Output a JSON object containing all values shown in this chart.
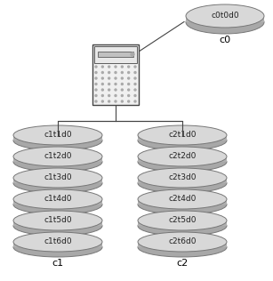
{
  "bg_color": "#ffffff",
  "disk_color": "#d8d8d8",
  "disk_edge_color": "#777777",
  "disk_side_color": "#b0b0b0",
  "disk_bottom_color": "#a8a8a8",
  "server_color": "#f0f0f0",
  "server_edge_color": "#444444",
  "line_color": "#444444",
  "c0_disk_label": "c0t0d0",
  "c0_label": "c0",
  "c1_disks": [
    "c1t1d0",
    "c1t2d0",
    "c1t3d0",
    "c1t4d0",
    "c1t5d0",
    "c1t6d0"
  ],
  "c2_disks": [
    "c2t1d0",
    "c2t2d0",
    "c2t3d0",
    "c2t4d0",
    "c2t5d0",
    "c2t6d0"
  ],
  "c1_label": "c1",
  "c2_label": "c2",
  "font_size": 6.5,
  "label_font_size": 8
}
